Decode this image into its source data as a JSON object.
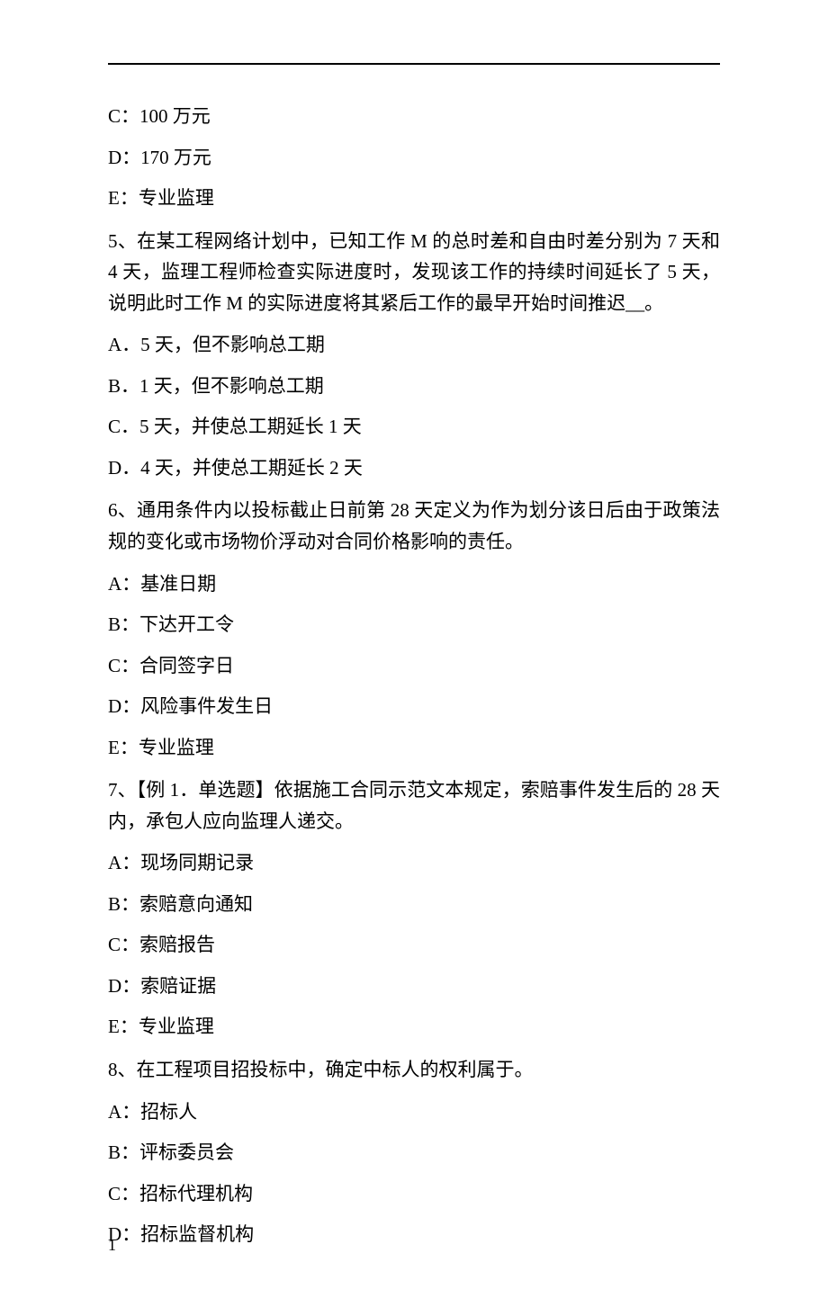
{
  "q4_options": {
    "c": "C：100 万元",
    "d": "D：170 万元",
    "e": "E：专业监理"
  },
  "q5": {
    "stem": "5、在某工程网络计划中，已知工作 M 的总时差和自由时差分别为 7 天和 4 天，监理工程师检查实际进度时，发现该工作的持续时间延长了 5 天，说明此时工作 M 的实际进度将其紧后工作的最早开始时间推迟__。",
    "a": "A．5 天，但不影响总工期",
    "b": "B．1 天，但不影响总工期",
    "c": "C．5 天，并使总工期延长 1 天",
    "d": "D．4 天，并使总工期延长 2 天"
  },
  "q6": {
    "stem": "6、通用条件内以投标截止日前第 28 天定义为作为划分该日后由于政策法规的变化或市场物价浮动对合同价格影响的责任。",
    "a": "A：基准日期",
    "b": "B：下达开工令",
    "c": "C：合同签字日",
    "d": "D：风险事件发生日",
    "e": "E：专业监理"
  },
  "q7": {
    "stem": "7、【例 1．单选题】依据施工合同示范文本规定，索赔事件发生后的 28 天内，承包人应向监理人递交。",
    "a": "A：现场同期记录",
    "b": "B：索赔意向通知",
    "c": "C：索赔报告",
    "d": "D：索赔证据",
    "e": "E：专业监理"
  },
  "q8": {
    "stem": "8、在工程项目招投标中，确定中标人的权利属于。",
    "a": "A：招标人",
    "b": "B：评标委员会",
    "c": "C：招标代理机构",
    "d": "D：招标监督机构"
  },
  "footer": "1"
}
